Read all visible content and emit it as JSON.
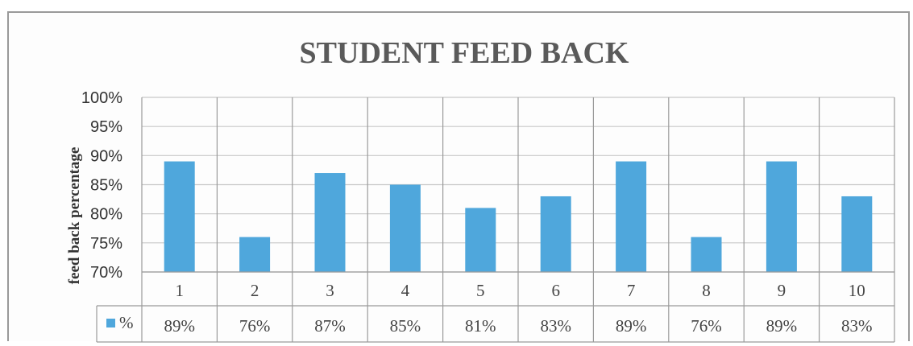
{
  "chart_data": {
    "type": "bar",
    "title": "STUDENT FEED BACK",
    "ylabel": "feed back percentage",
    "xlabel": "",
    "categories": [
      "1",
      "2",
      "3",
      "4",
      "5",
      "6",
      "7",
      "8",
      "9",
      "10"
    ],
    "series": [
      {
        "name": "%",
        "values": [
          89,
          76,
          87,
          85,
          81,
          83,
          89,
          76,
          89,
          83
        ],
        "labels": [
          "89%",
          "76%",
          "87%",
          "85%",
          "81%",
          "83%",
          "89%",
          "76%",
          "89%",
          "83%"
        ],
        "color": "#4fa7dc"
      }
    ],
    "ylim": [
      70,
      100
    ],
    "yticks": [
      "70%",
      "75%",
      "80%",
      "85%",
      "90%",
      "95%",
      "100%"
    ],
    "ytick_values": [
      70,
      75,
      80,
      85,
      90,
      95,
      100
    ],
    "grid": true,
    "legend": "data-table"
  }
}
